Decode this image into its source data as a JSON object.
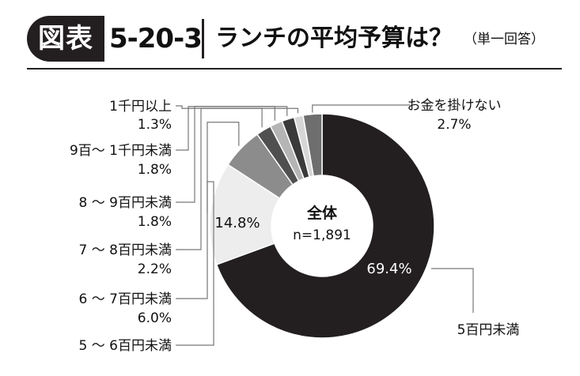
{
  "header": {
    "badge": "図表",
    "figure_number": "5-20-3",
    "title": "ランチの平均予算は？",
    "note": "（単一回答）"
  },
  "chart_data": {
    "type": "pie",
    "center_label": "全体",
    "center_sublabel": "n=1,891",
    "slices": [
      {
        "label": "5百円未満",
        "value": 69.4,
        "value_text": "69.4%",
        "color": "#231f20"
      },
      {
        "label": "5 ～ 6百円未満",
        "value": 14.8,
        "value_text": "14.8%",
        "color": "#ededed"
      },
      {
        "label": "6 ～ 7百円未満",
        "value": 6.0,
        "value_text": "6.0%",
        "color": "#8c8c8c"
      },
      {
        "label": "7 ～ 8百円未満",
        "value": 2.2,
        "value_text": "2.2%",
        "color": "#505050"
      },
      {
        "label": "8 ～ 9百円未満",
        "value": 1.8,
        "value_text": "1.8%",
        "color": "#b5b5b5"
      },
      {
        "label": "9百～ 1千円未満",
        "value": 1.8,
        "value_text": "1.8%",
        "color": "#3a3a3a"
      },
      {
        "label": "1千円以上",
        "value": 1.3,
        "value_text": "1.3%",
        "color": "#d6d6d6"
      },
      {
        "label": "お金を掛けない",
        "value": 2.7,
        "value_text": "2.7%",
        "color": "#6e6e6e"
      }
    ]
  }
}
